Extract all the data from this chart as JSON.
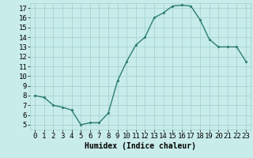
{
  "x": [
    0,
    1,
    2,
    3,
    4,
    5,
    6,
    7,
    8,
    9,
    10,
    11,
    12,
    13,
    14,
    15,
    16,
    17,
    18,
    19,
    20,
    21,
    22,
    23
  ],
  "y": [
    8.0,
    7.8,
    7.0,
    6.8,
    6.5,
    5.0,
    5.2,
    5.2,
    6.2,
    9.5,
    11.5,
    13.2,
    14.0,
    16.0,
    16.5,
    17.2,
    17.3,
    17.2,
    15.8,
    13.8,
    13.0,
    13.0,
    13.0,
    11.5
  ],
  "line_color": "#2d7d6f",
  "marker_color": "#2d7d6f",
  "bg_color": "#c8ecea",
  "grid_color": "#9ecfcc",
  "xlabel": "Humidex (Indice chaleur)",
  "xlim": [
    -0.5,
    23.5
  ],
  "ylim": [
    4.5,
    17.5
  ],
  "yticks": [
    5,
    6,
    7,
    8,
    9,
    10,
    11,
    12,
    13,
    14,
    15,
    16,
    17
  ],
  "xticks": [
    0,
    1,
    2,
    3,
    4,
    5,
    6,
    7,
    8,
    9,
    10,
    11,
    12,
    13,
    14,
    15,
    16,
    17,
    18,
    19,
    20,
    21,
    22,
    23
  ],
  "label_fontsize": 7,
  "tick_fontsize": 6.5
}
